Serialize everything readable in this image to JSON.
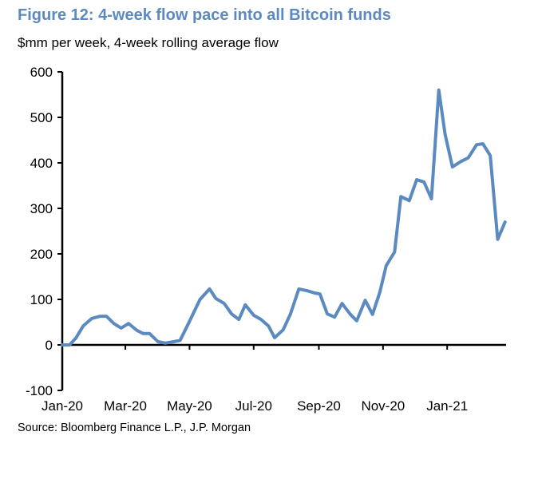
{
  "chart_data": {
    "type": "line",
    "title": "Figure 12: 4-week flow pace into all Bitcoin funds",
    "subtitle": "$mm per week, 4-week rolling average flow",
    "source": "Source: Bloomberg Finance L.P., J.P. Morgan",
    "xlabel": "",
    "ylabel": "",
    "ylim": [
      -100,
      600
    ],
    "yticks": [
      -100,
      0,
      100,
      200,
      300,
      400,
      500,
      600
    ],
    "xlim": [
      "2020-01-01",
      "2021-02-26"
    ],
    "xticks": [
      {
        "date": "2020-01-01",
        "label": "Jan-20"
      },
      {
        "date": "2020-03-01",
        "label": "Mar-20"
      },
      {
        "date": "2020-05-01",
        "label": "May-20"
      },
      {
        "date": "2020-07-01",
        "label": "Jul-20"
      },
      {
        "date": "2020-09-01",
        "label": "Sep-20"
      },
      {
        "date": "2020-11-01",
        "label": "Nov-20"
      },
      {
        "date": "2021-01-01",
        "label": "Jan-21"
      }
    ],
    "grid": false,
    "line_color": "#5b8ac0",
    "x": [
      "2020-01-01",
      "2020-01-08",
      "2020-01-14",
      "2020-01-21",
      "2020-01-29",
      "2020-02-06",
      "2020-02-12",
      "2020-02-19",
      "2020-02-26",
      "2020-03-04",
      "2020-03-12",
      "2020-03-18",
      "2020-03-24",
      "2020-04-01",
      "2020-04-08",
      "2020-04-16",
      "2020-04-22",
      "2020-04-30",
      "2020-05-11",
      "2020-05-20",
      "2020-05-26",
      "2020-06-03",
      "2020-06-10",
      "2020-06-17",
      "2020-06-23",
      "2020-07-01",
      "2020-07-08",
      "2020-07-15",
      "2020-07-21",
      "2020-07-29",
      "2020-08-05",
      "2020-08-13",
      "2020-08-21",
      "2020-08-28",
      "2020-09-02",
      "2020-09-09",
      "2020-09-16",
      "2020-09-23",
      "2020-10-01",
      "2020-10-07",
      "2020-10-15",
      "2020-10-22",
      "2020-10-29",
      "2020-11-04",
      "2020-11-12",
      "2020-11-18",
      "2020-11-26",
      "2020-12-03",
      "2020-12-10",
      "2020-12-17",
      "2020-12-24",
      "2020-12-30",
      "2021-01-06",
      "2021-01-14",
      "2021-01-21",
      "2021-01-29",
      "2021-02-04",
      "2021-02-11",
      "2021-02-18",
      "2021-02-25"
    ],
    "series": [
      {
        "values": [
          0,
          0,
          15,
          42,
          58,
          63,
          63,
          47,
          37,
          47,
          32,
          25,
          25,
          7,
          4,
          7,
          10,
          47,
          100,
          123,
          102,
          91,
          68,
          56,
          88,
          65,
          56,
          42,
          16,
          33,
          68,
          123,
          119,
          114,
          112,
          68,
          61,
          91,
          67,
          53,
          98,
          67,
          116,
          174,
          204,
          326,
          317,
          363,
          358,
          321,
          560,
          463,
          391,
          403,
          411,
          440,
          442,
          416,
          232,
          270
        ]
      }
    ]
  }
}
